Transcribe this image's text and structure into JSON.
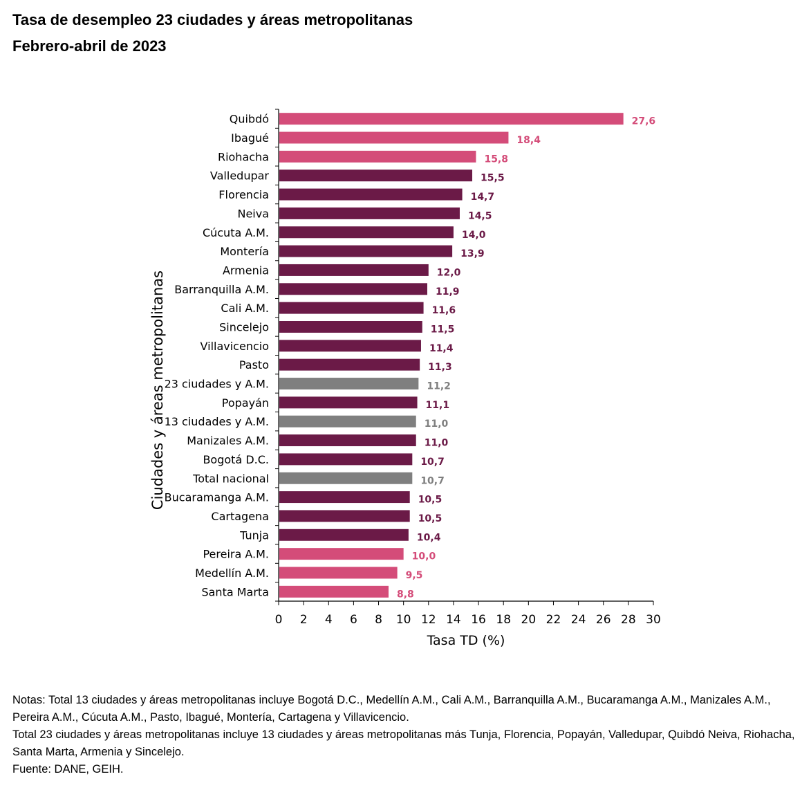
{
  "title": "Tasa de desempleo 23 ciudades y áreas metropolitanas",
  "subtitle": "Febrero-abril de 2023",
  "notes": [
    "Notas: Total 13 ciudades y áreas metropolitanas incluye Bogotá D.C., Medellín A.M., Cali A.M., Barranquilla A.M., Bucaramanga A.M., Manizales A.M., Pereira A.M., Cúcuta A.M., Pasto, Ibagué, Montería, Cartagena y Villavicencio.",
    "Total 23 ciudades y áreas metropolitanas incluye 13 ciudades y áreas metropolitanas más Tunja, Florencia, Popayán, Valledupar, Quibdó Neiva, Riohacha, Santa Marta, Armenia y Sincelejo.",
    "Fuente: DANE, GEIH."
  ],
  "colors": {
    "pink": "#d44c79",
    "dark": "#6b1a47",
    "gray": "#7f7f7f",
    "axis": "#000000"
  },
  "chart_data": {
    "type": "bar",
    "orientation": "horizontal",
    "title": "Tasa de desempleo 23 ciudades y áreas metropolitanas",
    "subtitle": "Febrero-abril de 2023",
    "xlabel": "Tasa TD (%)",
    "ylabel": "Ciudades y áreas metropolitanas",
    "xlim": [
      0,
      30
    ],
    "xticks": [
      0,
      2,
      4,
      6,
      8,
      10,
      12,
      14,
      16,
      18,
      20,
      22,
      24,
      26,
      28,
      30
    ],
    "grid": false,
    "categories": [
      "Quibdó",
      "Ibagué",
      "Riohacha",
      "Valledupar",
      "Florencia",
      "Neiva",
      "Cúcuta A.M.",
      "Montería",
      "Armenia",
      "Barranquilla A.M.",
      "Cali A.M.",
      "Sincelejo",
      "Villavicencio",
      "Pasto",
      "23 ciudades y A.M.",
      "Popayán",
      "13 ciudades y A.M.",
      "Manizales A.M.",
      "Bogotá D.C.",
      "Total nacional",
      "Bucaramanga A.M.",
      "Cartagena",
      "Tunja",
      "Pereira A.M.",
      "Medellín A.M.",
      "Santa Marta"
    ],
    "values": [
      27.6,
      18.4,
      15.8,
      15.5,
      14.7,
      14.5,
      14.0,
      13.9,
      12.0,
      11.9,
      11.6,
      11.5,
      11.4,
      11.3,
      11.2,
      11.1,
      11.0,
      11.0,
      10.7,
      10.7,
      10.5,
      10.5,
      10.4,
      10.0,
      9.5,
      8.8
    ],
    "labels": [
      "27,6",
      "18,4",
      "15,8",
      "15,5",
      "14,7",
      "14,5",
      "14,0",
      "13,9",
      "12,0",
      "11,9",
      "11,6",
      "11,5",
      "11,4",
      "11,3",
      "11,2",
      "11,1",
      "11,0",
      "11,0",
      "10,7",
      "10,7",
      "10,5",
      "10,5",
      "10,4",
      "10,0",
      "9,5",
      "8,8"
    ],
    "groups": [
      "pink",
      "pink",
      "pink",
      "dark",
      "dark",
      "dark",
      "dark",
      "dark",
      "dark",
      "dark",
      "dark",
      "dark",
      "dark",
      "dark",
      "gray",
      "dark",
      "gray",
      "dark",
      "dark",
      "gray",
      "dark",
      "dark",
      "dark",
      "pink",
      "pink",
      "pink"
    ]
  }
}
